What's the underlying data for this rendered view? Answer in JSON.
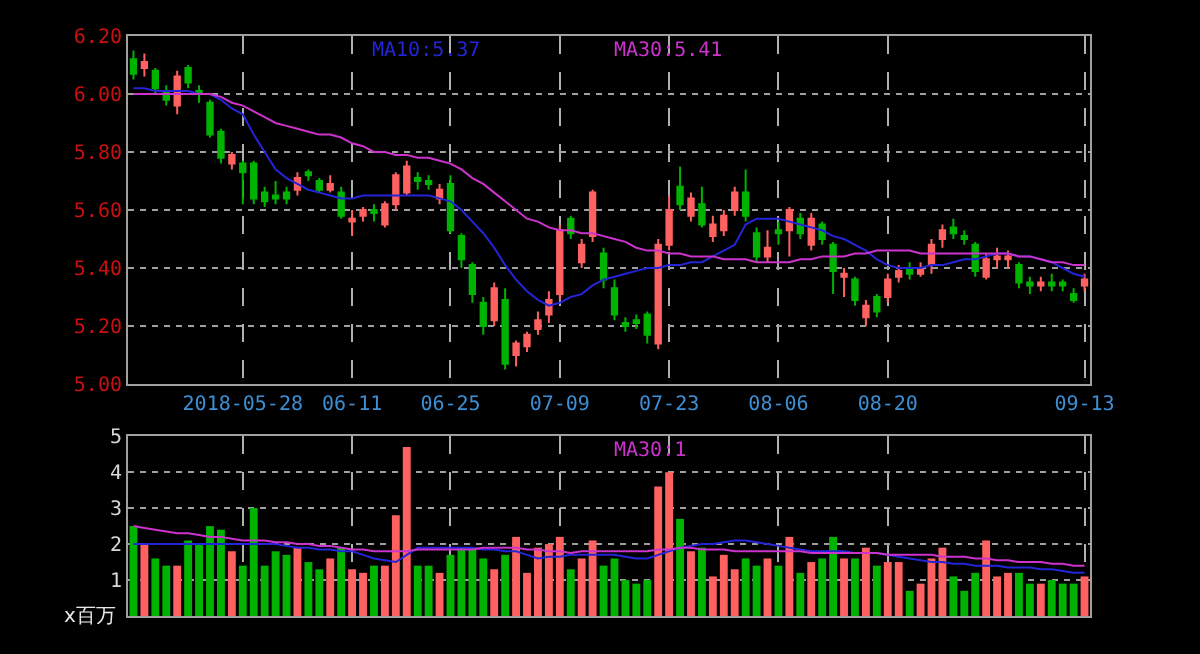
{
  "chart_data": [
    {
      "type": "candlestick",
      "categories": [
        null,
        null,
        null,
        null,
        null,
        null,
        null,
        null,
        null,
        null,
        "2018-05-28",
        null,
        null,
        null,
        null,
        null,
        null,
        null,
        null,
        null,
        "06-11",
        null,
        null,
        null,
        null,
        null,
        null,
        null,
        null,
        "06-25",
        null,
        null,
        null,
        null,
        null,
        null,
        null,
        null,
        null,
        "07-09",
        null,
        null,
        null,
        null,
        null,
        null,
        null,
        null,
        null,
        "07-23",
        null,
        null,
        null,
        null,
        null,
        null,
        null,
        null,
        null,
        "08-06",
        null,
        null,
        null,
        null,
        null,
        null,
        null,
        null,
        null,
        "08-20",
        null,
        null,
        null,
        null,
        null,
        null,
        null,
        null,
        null,
        null,
        null,
        null,
        null,
        null,
        null,
        null,
        null,
        "09-13"
      ],
      "ohlc": [
        [
          6.12,
          6.15,
          6.05,
          6.07
        ],
        [
          6.09,
          6.14,
          6.06,
          6.11
        ],
        [
          6.08,
          6.09,
          6.0,
          6.02
        ],
        [
          6.01,
          6.03,
          5.96,
          5.98
        ],
        [
          5.96,
          6.08,
          5.93,
          6.06
        ],
        [
          6.09,
          6.1,
          6.02,
          6.04
        ],
        [
          6.01,
          6.03,
          5.97,
          6.0
        ],
        [
          5.97,
          5.98,
          5.85,
          5.86
        ],
        [
          5.87,
          5.88,
          5.76,
          5.78
        ],
        [
          5.76,
          5.8,
          5.74,
          5.79
        ],
        [
          5.76,
          5.77,
          5.62,
          5.73
        ],
        [
          5.76,
          5.77,
          5.62,
          5.64
        ],
        [
          5.66,
          5.68,
          5.61,
          5.63
        ],
        [
          5.65,
          5.7,
          5.62,
          5.64
        ],
        [
          5.66,
          5.68,
          5.62,
          5.64
        ],
        [
          5.67,
          5.73,
          5.65,
          5.71
        ],
        [
          5.73,
          5.74,
          5.7,
          5.72
        ],
        [
          5.7,
          5.71,
          5.66,
          5.67
        ],
        [
          5.67,
          5.72,
          5.66,
          5.69
        ],
        [
          5.66,
          5.68,
          5.57,
          5.58
        ],
        [
          5.56,
          5.6,
          5.51,
          5.57
        ],
        [
          5.58,
          5.61,
          5.56,
          5.6
        ],
        [
          5.6,
          5.62,
          5.56,
          5.59
        ],
        [
          5.55,
          5.63,
          5.54,
          5.62
        ],
        [
          5.62,
          5.73,
          5.6,
          5.72
        ],
        [
          5.66,
          5.77,
          5.65,
          5.75
        ],
        [
          5.71,
          5.73,
          5.67,
          5.7
        ],
        [
          5.7,
          5.72,
          5.67,
          5.69
        ],
        [
          5.64,
          5.69,
          5.62,
          5.67
        ],
        [
          5.69,
          5.72,
          5.52,
          5.53
        ],
        [
          5.51,
          5.52,
          5.4,
          5.43
        ],
        [
          5.41,
          5.42,
          5.28,
          5.31
        ],
        [
          5.28,
          5.3,
          5.17,
          5.2
        ],
        [
          5.22,
          5.35,
          5.2,
          5.33
        ],
        [
          5.29,
          5.33,
          5.05,
          5.07
        ],
        [
          5.1,
          5.15,
          5.06,
          5.14
        ],
        [
          5.13,
          5.18,
          5.11,
          5.17
        ],
        [
          5.19,
          5.25,
          5.17,
          5.22
        ],
        [
          5.24,
          5.32,
          5.21,
          5.29
        ],
        [
          5.31,
          5.55,
          5.29,
          5.53
        ],
        [
          5.57,
          5.58,
          5.5,
          5.52
        ],
        [
          5.42,
          5.5,
          5.4,
          5.48
        ],
        [
          5.51,
          5.67,
          5.49,
          5.66
        ],
        [
          5.45,
          5.47,
          5.33,
          5.36
        ],
        [
          5.33,
          5.36,
          5.22,
          5.24
        ],
        [
          5.21,
          5.23,
          5.18,
          5.2
        ],
        [
          5.22,
          5.24,
          5.19,
          5.21
        ],
        [
          5.24,
          5.25,
          5.14,
          5.17
        ],
        [
          5.14,
          5.5,
          5.12,
          5.48
        ],
        [
          5.48,
          5.65,
          5.46,
          5.6
        ],
        [
          5.68,
          5.75,
          5.6,
          5.62
        ],
        [
          5.58,
          5.66,
          5.56,
          5.64
        ],
        [
          5.62,
          5.68,
          5.54,
          5.55
        ],
        [
          5.51,
          5.58,
          5.49,
          5.55
        ],
        [
          5.53,
          5.6,
          5.51,
          5.58
        ],
        [
          5.6,
          5.68,
          5.58,
          5.66
        ],
        [
          5.66,
          5.74,
          5.56,
          5.58
        ],
        [
          5.52,
          5.54,
          5.42,
          5.44
        ],
        [
          5.44,
          5.53,
          5.42,
          5.47
        ],
        [
          5.53,
          5.56,
          5.48,
          5.52
        ],
        [
          5.53,
          5.61,
          5.44,
          5.6
        ],
        [
          5.57,
          5.59,
          5.5,
          5.52
        ],
        [
          5.48,
          5.59,
          5.46,
          5.57
        ],
        [
          5.55,
          5.56,
          5.48,
          5.5
        ],
        [
          5.48,
          5.49,
          5.31,
          5.39
        ],
        [
          5.37,
          5.4,
          5.3,
          5.38
        ],
        [
          5.36,
          5.37,
          5.27,
          5.29
        ],
        [
          5.23,
          5.29,
          5.2,
          5.27
        ],
        [
          5.3,
          5.31,
          5.23,
          5.25
        ],
        [
          5.3,
          5.38,
          5.28,
          5.36
        ],
        [
          5.37,
          5.41,
          5.35,
          5.39
        ],
        [
          5.4,
          5.42,
          5.36,
          5.38
        ],
        [
          5.38,
          5.42,
          5.37,
          5.4
        ],
        [
          5.41,
          5.5,
          5.38,
          5.48
        ],
        [
          5.5,
          5.55,
          5.47,
          5.53
        ],
        [
          5.54,
          5.57,
          5.5,
          5.52
        ],
        [
          5.51,
          5.53,
          5.48,
          5.5
        ],
        [
          5.48,
          5.49,
          5.37,
          5.39
        ],
        [
          5.37,
          5.45,
          5.36,
          5.43
        ],
        [
          5.43,
          5.47,
          5.4,
          5.44
        ],
        [
          5.43,
          5.46,
          5.4,
          5.44
        ],
        [
          5.41,
          5.42,
          5.33,
          5.35
        ],
        [
          5.35,
          5.37,
          5.31,
          5.34
        ],
        [
          5.34,
          5.37,
          5.32,
          5.35
        ],
        [
          5.35,
          5.38,
          5.32,
          5.34
        ],
        [
          5.35,
          5.36,
          5.32,
          5.34
        ],
        [
          5.31,
          5.33,
          5.28,
          5.29
        ],
        [
          5.34,
          5.38,
          5.32,
          5.36
        ]
      ],
      "colors": [
        "#00b300",
        "#ff6161",
        "#00b300",
        "#00b300",
        "#ff6161",
        "#00b300",
        "#00b300",
        "#00b300",
        "#00b300",
        "#ff6161",
        "#00b300",
        "#00b300",
        "#00b300",
        "#00b300",
        "#00b300",
        "#ff6161",
        "#00b300",
        "#00b300",
        "#ff6161",
        "#00b300",
        "#ff6161",
        "#ff6161",
        "#00b300",
        "#ff6161",
        "#ff6161",
        "#ff6161",
        "#00b300",
        "#00b300",
        "#ff6161",
        "#00b300",
        "#00b300",
        "#00b300",
        "#00b300",
        "#ff6161",
        "#00b300",
        "#ff6161",
        "#ff6161",
        "#ff6161",
        "#ff6161",
        "#ff6161",
        "#00b300",
        "#ff6161",
        "#ff6161",
        "#00b300",
        "#00b300",
        "#00b300",
        "#00b300",
        "#00b300",
        "#ff6161",
        "#ff6161",
        "#00b300",
        "#ff6161",
        "#00b300",
        "#ff6161",
        "#ff6161",
        "#ff6161",
        "#00b300",
        "#00b300",
        "#ff6161",
        "#00b300",
        "#ff6161",
        "#00b300",
        "#ff6161",
        "#00b300",
        "#00b300",
        "#ff6161",
        "#00b300",
        "#ff6161",
        "#00b300",
        "#ff6161",
        "#ff6161",
        "#00b300",
        "#ff6161",
        "#ff6161",
        "#ff6161",
        "#00b300",
        "#00b300",
        "#00b300",
        "#ff6161",
        "#ff6161",
        "#ff6161",
        "#00b300",
        "#00b300",
        "#ff6161",
        "#00b300",
        "#00b300",
        "#00b300",
        "#ff6161"
      ],
      "series": [
        {
          "type": "line",
          "name": "MA10:5.37",
          "color": "#2424d8",
          "values": [
            6.02,
            6.02,
            6.01,
            6.01,
            6.01,
            6.01,
            6.0,
            6.0,
            5.98,
            5.95,
            5.93,
            5.86,
            5.8,
            5.74,
            5.71,
            5.69,
            5.67,
            5.66,
            5.65,
            5.64,
            5.64,
            5.65,
            5.65,
            5.65,
            5.65,
            5.65,
            5.65,
            5.65,
            5.64,
            5.63,
            5.6,
            5.56,
            5.52,
            5.47,
            5.41,
            5.36,
            5.32,
            5.29,
            5.27,
            5.28,
            5.3,
            5.31,
            5.34,
            5.36,
            5.37,
            5.38,
            5.39,
            5.4,
            5.4,
            5.41,
            5.41,
            5.42,
            5.42,
            5.44,
            5.46,
            5.48,
            5.55,
            5.57,
            5.57,
            5.57,
            5.56,
            5.55,
            5.54,
            5.53,
            5.51,
            5.5,
            5.48,
            5.46,
            5.43,
            5.41,
            5.4,
            5.4,
            5.4,
            5.41,
            5.41,
            5.42,
            5.43,
            5.43,
            5.44,
            5.45,
            5.45,
            5.44,
            5.44,
            5.43,
            5.42,
            5.4,
            5.38,
            5.37
          ]
        },
        {
          "type": "line",
          "name": "MA30:5.41",
          "color": "#cc33cc",
          "values": [
            6.0,
            6.0,
            6.0,
            6.0,
            6.0,
            6.0,
            6.0,
            6.0,
            5.99,
            5.97,
            5.96,
            5.94,
            5.92,
            5.9,
            5.89,
            5.88,
            5.87,
            5.86,
            5.86,
            5.85,
            5.83,
            5.82,
            5.8,
            5.8,
            5.79,
            5.79,
            5.78,
            5.78,
            5.77,
            5.76,
            5.74,
            5.71,
            5.69,
            5.66,
            5.63,
            5.6,
            5.57,
            5.56,
            5.54,
            5.53,
            5.53,
            5.52,
            5.52,
            5.51,
            5.5,
            5.49,
            5.47,
            5.46,
            5.46,
            5.45,
            5.45,
            5.44,
            5.44,
            5.44,
            5.43,
            5.43,
            5.43,
            5.42,
            5.42,
            5.42,
            5.42,
            5.43,
            5.43,
            5.44,
            5.44,
            5.44,
            5.45,
            5.45,
            5.46,
            5.46,
            5.46,
            5.46,
            5.45,
            5.45,
            5.45,
            5.45,
            5.45,
            5.45,
            5.45,
            5.45,
            5.45,
            5.44,
            5.44,
            5.43,
            5.42,
            5.42,
            5.41,
            5.41
          ]
        }
      ],
      "ylim": [
        5.0,
        6.2
      ],
      "yticks": [
        {
          "value": 5.0,
          "label": "5.00"
        },
        {
          "value": 5.2,
          "label": "5.20"
        },
        {
          "value": 5.4,
          "label": "5.40"
        },
        {
          "value": 5.6,
          "label": "5.60"
        },
        {
          "value": 5.8,
          "label": "5.80"
        },
        {
          "value": 6.0,
          "label": "6.00"
        },
        {
          "value": 6.2,
          "label": "6.20"
        }
      ],
      "grid": true
    },
    {
      "type": "bar",
      "categories": [
        null,
        null,
        null,
        null,
        null,
        null,
        null,
        null,
        null,
        null,
        null,
        null,
        null,
        null,
        null,
        null,
        null,
        null,
        null,
        null,
        null,
        null,
        null,
        null,
        null,
        null,
        null,
        null,
        null,
        null,
        null,
        null,
        null,
        null,
        null,
        null,
        null,
        null,
        null,
        null,
        null,
        null,
        null,
        null,
        null,
        null,
        null,
        null,
        null,
        null,
        null,
        null,
        null,
        null,
        null,
        null,
        null,
        null,
        null,
        null,
        null,
        null,
        null,
        null,
        null,
        null,
        null,
        null,
        null,
        null,
        null,
        null,
        null,
        null,
        null,
        null,
        null,
        null,
        null,
        null,
        null,
        null,
        null,
        null,
        null,
        null,
        null,
        null
      ],
      "tick_labels": "y",
      "ylabel": "x百万",
      "series": [
        {
          "type": "bar",
          "values": [
            2.5,
            2.0,
            1.6,
            1.4,
            1.4,
            2.1,
            2.0,
            2.5,
            2.4,
            1.8,
            1.4,
            3.0,
            1.4,
            1.8,
            1.7,
            1.9,
            1.5,
            1.3,
            1.6,
            1.9,
            1.3,
            1.2,
            1.4,
            1.4,
            2.8,
            4.7,
            1.4,
            1.4,
            1.2,
            1.7,
            1.9,
            1.9,
            1.6,
            1.3,
            1.7,
            2.2,
            1.2,
            1.9,
            2.0,
            2.2,
            1.3,
            1.6,
            2.1,
            1.4,
            1.6,
            1.0,
            0.9,
            1.0,
            3.6,
            4.0,
            2.7,
            1.8,
            1.9,
            1.1,
            1.7,
            1.3,
            1.6,
            1.4,
            1.6,
            1.4,
            2.2,
            1.2,
            1.5,
            1.6,
            2.2,
            1.6,
            1.6,
            1.9,
            1.4,
            1.5,
            1.5,
            0.7,
            0.9,
            1.6,
            1.9,
            1.1,
            0.7,
            1.2,
            2.1,
            1.1,
            1.2,
            1.2,
            0.9,
            0.9,
            1.0,
            0.9,
            0.9,
            1.1
          ],
          "colors": [
            "#00b300",
            "#ff6161",
            "#00b300",
            "#00b300",
            "#ff6161",
            "#00b300",
            "#00b300",
            "#00b300",
            "#00b300",
            "#ff6161",
            "#00b300",
            "#00b300",
            "#00b300",
            "#00b300",
            "#00b300",
            "#ff6161",
            "#00b300",
            "#00b300",
            "#ff6161",
            "#00b300",
            "#ff6161",
            "#ff6161",
            "#00b300",
            "#ff6161",
            "#ff6161",
            "#ff6161",
            "#00b300",
            "#00b300",
            "#ff6161",
            "#00b300",
            "#00b300",
            "#00b300",
            "#00b300",
            "#ff6161",
            "#00b300",
            "#ff6161",
            "#ff6161",
            "#ff6161",
            "#ff6161",
            "#ff6161",
            "#00b300",
            "#ff6161",
            "#ff6161",
            "#00b300",
            "#00b300",
            "#00b300",
            "#00b300",
            "#00b300",
            "#ff6161",
            "#ff6161",
            "#00b300",
            "#ff6161",
            "#00b300",
            "#ff6161",
            "#ff6161",
            "#ff6161",
            "#00b300",
            "#00b300",
            "#ff6161",
            "#00b300",
            "#ff6161",
            "#00b300",
            "#ff6161",
            "#00b300",
            "#00b300",
            "#ff6161",
            "#00b300",
            "#ff6161",
            "#00b300",
            "#ff6161",
            "#ff6161",
            "#00b300",
            "#ff6161",
            "#ff6161",
            "#ff6161",
            "#00b300",
            "#00b300",
            "#00b300",
            "#ff6161",
            "#ff6161",
            "#ff6161",
            "#00b300",
            "#00b300",
            "#ff6161",
            "#00b300",
            "#00b300",
            "#00b300",
            "#ff6161"
          ]
        },
        {
          "type": "line",
          "color": "#2424d8",
          "values": [
            2.0,
            2.0,
            2.0,
            2.0,
            2.0,
            2.0,
            2.0,
            2.0,
            2.0,
            2.0,
            2.0,
            2.0,
            2.0,
            2.0,
            1.95,
            1.9,
            1.9,
            1.85,
            1.85,
            1.8,
            1.8,
            1.7,
            1.6,
            1.55,
            1.5,
            1.7,
            1.9,
            1.9,
            1.9,
            1.9,
            1.9,
            1.9,
            1.85,
            1.85,
            1.8,
            1.8,
            1.7,
            1.6,
            1.65,
            1.65,
            1.7,
            1.7,
            1.7,
            1.7,
            1.7,
            1.65,
            1.6,
            1.6,
            1.7,
            1.8,
            1.9,
            1.95,
            2.0,
            2.0,
            2.05,
            2.1,
            2.1,
            2.05,
            2.0,
            1.95,
            1.9,
            1.85,
            1.8,
            1.8,
            1.8,
            1.8,
            1.75,
            1.75,
            1.75,
            1.7,
            1.65,
            1.6,
            1.55,
            1.5,
            1.5,
            1.45,
            1.45,
            1.4,
            1.4,
            1.4,
            1.35,
            1.35,
            1.35,
            1.3,
            1.3,
            1.25,
            1.2,
            1.2
          ]
        },
        {
          "type": "line",
          "name": "MA30:1",
          "color": "#cc33cc",
          "values": [
            2.5,
            2.45,
            2.4,
            2.35,
            2.3,
            2.3,
            2.25,
            2.2,
            2.2,
            2.15,
            2.1,
            2.1,
            2.1,
            2.05,
            2.05,
            2.0,
            2.0,
            1.95,
            1.95,
            1.9,
            1.85,
            1.85,
            1.8,
            1.8,
            1.8,
            1.8,
            1.85,
            1.85,
            1.85,
            1.85,
            1.85,
            1.85,
            1.9,
            1.9,
            1.9,
            1.9,
            1.85,
            1.85,
            1.8,
            1.8,
            1.75,
            1.8,
            1.8,
            1.8,
            1.8,
            1.8,
            1.8,
            1.8,
            1.85,
            1.85,
            1.9,
            1.9,
            1.85,
            1.85,
            1.85,
            1.8,
            1.8,
            1.8,
            1.8,
            1.8,
            1.8,
            1.8,
            1.75,
            1.75,
            1.75,
            1.75,
            1.75,
            1.75,
            1.75,
            1.7,
            1.7,
            1.7,
            1.7,
            1.7,
            1.65,
            1.65,
            1.65,
            1.6,
            1.6,
            1.55,
            1.55,
            1.5,
            1.5,
            1.5,
            1.45,
            1.45,
            1.4,
            1.4
          ]
        }
      ],
      "ylim": [
        0,
        5
      ],
      "yticks": [
        1,
        2,
        3,
        4,
        5
      ],
      "grid": true
    }
  ]
}
